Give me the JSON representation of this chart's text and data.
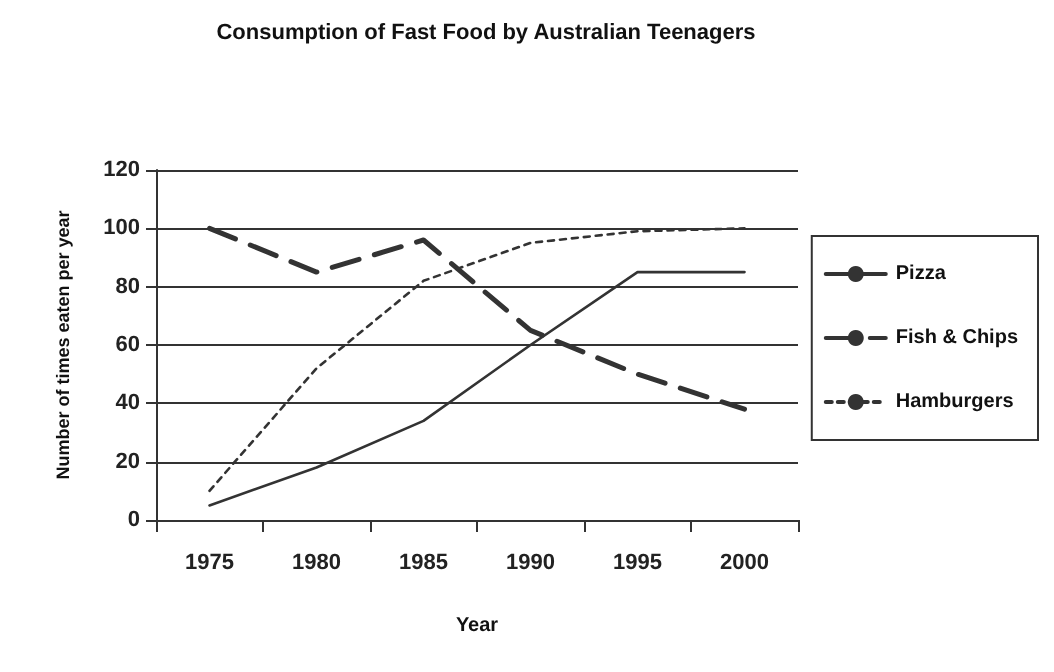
{
  "chart_data": {
    "type": "line",
    "title": "Consumption of Fast Food by Australian Teenagers",
    "xlabel": "Year",
    "ylabel": "Number of times eaten per year",
    "categories": [
      "1975",
      "1980",
      "1985",
      "1990",
      "1995",
      "2000"
    ],
    "series": [
      {
        "name": "Pizza",
        "color": "#333333",
        "line_style": "solid",
        "values": [
          5,
          18,
          34,
          60,
          85,
          85
        ]
      },
      {
        "name": "Fish & Chips",
        "color": "#333333",
        "line_style": "dashed",
        "values": [
          100,
          85,
          96,
          65,
          50,
          38
        ]
      },
      {
        "name": "Hamburgers",
        "color": "#333333",
        "line_style": "dotted",
        "values": [
          10,
          52,
          82,
          95,
          99,
          100
        ]
      }
    ],
    "ylim": [
      0,
      120
    ],
    "yticks": [
      0,
      20,
      40,
      60,
      80,
      100,
      120
    ],
    "grid": "y",
    "legend": "right",
    "marker": "none"
  }
}
